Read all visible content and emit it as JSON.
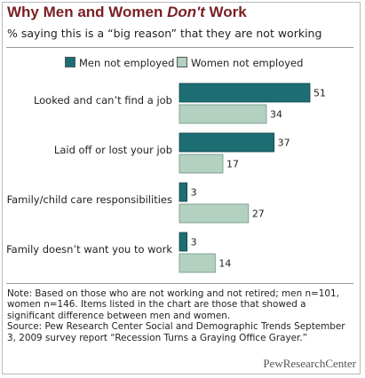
{
  "header": {
    "title_pre": "Why Men and Women ",
    "title_em": "Don't",
    "title_post": " Work",
    "subtitle": "% saying this is a “big reason” that they are not working"
  },
  "colors": {
    "men": "#1d6e73",
    "women": "#b3d1c0",
    "title": "#7a1f23"
  },
  "chart_data": {
    "type": "bar",
    "orientation": "horizontal",
    "categories": [
      "Looked and can’t find a job",
      "Laid off or lost your job",
      "Family/child care responsibilities",
      "Family doesn’t want you to work"
    ],
    "series": [
      {
        "name": "Men not employed",
        "values": [
          51,
          37,
          3,
          3
        ]
      },
      {
        "name": "Women not employed",
        "values": [
          34,
          17,
          27,
          14
        ]
      }
    ],
    "xlim": [
      0,
      51
    ],
    "grid": false,
    "legend": "top",
    "data_labels": true
  },
  "note": {
    "line1": "Note: Based on those who are not working and not retired; men n=101, women n=146. Items listed in the chart are those that showed a significant difference between men and women.",
    "line2": "Source: Pew Research Center Social and Demographic Trends September 3, 2009 survey report “Recession Turns a Graying Office Grayer.”"
  },
  "logo": {
    "text": "PewResearchCenter"
  }
}
